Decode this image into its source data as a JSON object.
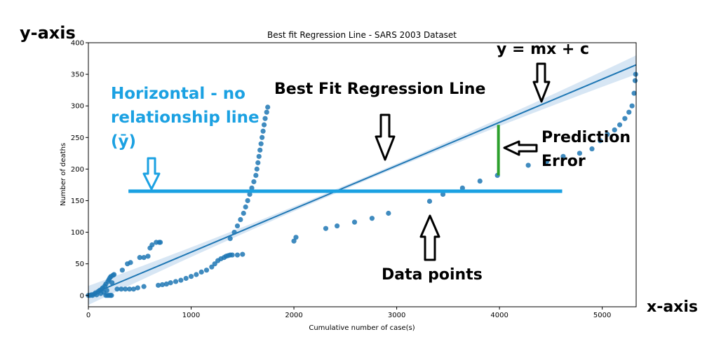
{
  "chart_data": {
    "type": "scatter",
    "title": "Best fit Regression Line - SARS 2003 Dataset",
    "xlabel": "Cumulative number of case(s)",
    "ylabel": "Number of deaths",
    "xlim": [
      0,
      5330
    ],
    "ylim": [
      -18,
      400
    ],
    "xticks": [
      0,
      1000,
      2000,
      3000,
      4000,
      5000
    ],
    "yticks": [
      0,
      50,
      100,
      150,
      200,
      250,
      300,
      350,
      400
    ],
    "grid": false,
    "series": [
      {
        "points": [
          [
            0,
            0
          ],
          [
            15,
            0
          ],
          [
            30,
            1
          ],
          [
            40,
            0
          ],
          [
            55,
            2
          ],
          [
            70,
            4
          ],
          [
            80,
            1
          ],
          [
            95,
            6
          ],
          [
            110,
            8
          ],
          [
            120,
            3
          ],
          [
            130,
            10
          ],
          [
            140,
            12
          ],
          [
            150,
            5
          ],
          [
            160,
            15
          ],
          [
            170,
            18
          ],
          [
            180,
            8
          ],
          [
            190,
            22
          ],
          [
            200,
            25
          ],
          [
            210,
            28
          ],
          [
            220,
            30
          ],
          [
            230,
            20
          ],
          [
            240,
            32
          ],
          [
            250,
            33
          ],
          [
            170,
            0
          ],
          [
            185,
            0
          ],
          [
            200,
            0
          ],
          [
            215,
            0
          ],
          [
            225,
            0
          ],
          [
            280,
            10
          ],
          [
            320,
            10
          ],
          [
            360,
            10
          ],
          [
            400,
            10
          ],
          [
            440,
            10
          ],
          [
            480,
            12
          ],
          [
            540,
            14
          ],
          [
            330,
            40
          ],
          [
            380,
            50
          ],
          [
            410,
            52
          ],
          [
            500,
            60
          ],
          [
            540,
            60
          ],
          [
            580,
            62
          ],
          [
            600,
            75
          ],
          [
            620,
            80
          ],
          [
            660,
            84
          ],
          [
            690,
            84
          ],
          [
            700,
            84
          ],
          [
            680,
            16
          ],
          [
            720,
            17
          ],
          [
            760,
            18
          ],
          [
            800,
            20
          ],
          [
            850,
            22
          ],
          [
            900,
            24
          ],
          [
            950,
            27
          ],
          [
            1000,
            30
          ],
          [
            1050,
            33
          ],
          [
            1100,
            37
          ],
          [
            1150,
            40
          ],
          [
            1200,
            45
          ],
          [
            1230,
            50
          ],
          [
            1260,
            55
          ],
          [
            1290,
            58
          ],
          [
            1320,
            60
          ],
          [
            1340,
            62
          ],
          [
            1360,
            63
          ],
          [
            1380,
            64
          ],
          [
            1400,
            64
          ],
          [
            1450,
            64
          ],
          [
            1500,
            65
          ],
          [
            1380,
            90
          ],
          [
            1420,
            100
          ],
          [
            1450,
            110
          ],
          [
            1480,
            120
          ],
          [
            1510,
            130
          ],
          [
            1530,
            140
          ],
          [
            1550,
            150
          ],
          [
            1570,
            160
          ],
          [
            1590,
            170
          ],
          [
            1610,
            180
          ],
          [
            1630,
            190
          ],
          [
            1640,
            200
          ],
          [
            1650,
            210
          ],
          [
            1660,
            220
          ],
          [
            1670,
            230
          ],
          [
            1680,
            240
          ],
          [
            1690,
            250
          ],
          [
            1700,
            260
          ],
          [
            1710,
            270
          ],
          [
            1720,
            280
          ],
          [
            1735,
            290
          ],
          [
            1745,
            298
          ],
          [
            2000,
            86
          ],
          [
            2020,
            92
          ],
          [
            2310,
            106
          ],
          [
            2420,
            110
          ],
          [
            2590,
            116
          ],
          [
            2760,
            122
          ],
          [
            2920,
            130
          ],
          [
            3320,
            149
          ],
          [
            3450,
            160
          ],
          [
            3640,
            170
          ],
          [
            3810,
            181
          ],
          [
            3980,
            190
          ],
          [
            4280,
            206
          ],
          [
            4460,
            212
          ],
          [
            4620,
            220
          ],
          [
            4780,
            225
          ],
          [
            4900,
            232
          ],
          [
            4980,
            245
          ],
          [
            5050,
            255
          ],
          [
            5120,
            262
          ],
          [
            5170,
            270
          ],
          [
            5220,
            280
          ],
          [
            5260,
            290
          ],
          [
            5290,
            300
          ],
          [
            5310,
            320
          ],
          [
            5320,
            340
          ],
          [
            5325,
            350
          ]
        ]
      }
    ],
    "regression": {
      "x": [
        0,
        5330
      ],
      "y": [
        0,
        365
      ]
    },
    "mean_line": {
      "y": 165,
      "x": [
        390,
        4610
      ]
    },
    "error_segment": {
      "x": 3990,
      "y": [
        190,
        270
      ]
    },
    "colors": {
      "points": "#1f77b4",
      "line": "#1f77b4",
      "band": "#c6dbef",
      "mean": "#1ba1e2",
      "error": "#2ca02c"
    }
  },
  "annotations": {
    "y_axis": "y-axis",
    "x_axis": "x-axis",
    "equation": "y = mx + c",
    "best_fit": "Best Fit Regression Line",
    "horizontal_line_1": "Horizontal - no",
    "horizontal_line_2": "relationship line",
    "horizontal_line_3": "(ȳ)",
    "prediction_1": "Prediction",
    "prediction_2": "Error",
    "data_points": "Data points"
  }
}
